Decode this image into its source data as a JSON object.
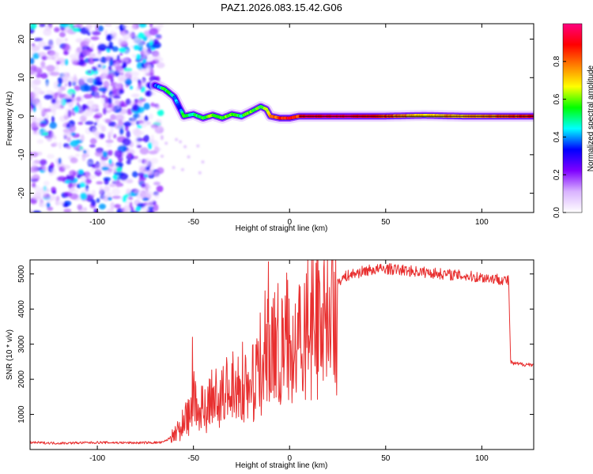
{
  "title": "PAZ1.2026.083.15.42.G06",
  "chart_data": [
    {
      "type": "heatmap",
      "title": "PAZ1.2026.083.15.42.G06",
      "xlabel": "Height of straight line (km)",
      "ylabel": "Frequency (Hz)",
      "xlim": [
        -135,
        127
      ],
      "ylim": [
        -25,
        24
      ],
      "xticks": [
        -100,
        -50,
        0,
        50,
        100
      ],
      "yticks": [
        20,
        10,
        0,
        -10,
        -20
      ],
      "xtick_labels": [
        "-100",
        "-50",
        "0",
        "50",
        "100"
      ],
      "ytick_labels": [
        "20",
        "10",
        "0",
        "-10",
        "-20"
      ],
      "ridge": {
        "x": [
          -70,
          -65,
          -60,
          -57,
          -55,
          -50,
          -45,
          -40,
          -35,
          -30,
          -25,
          -20,
          -15,
          -12,
          -10,
          -5,
          0,
          5,
          10,
          30,
          50,
          70,
          90,
          110,
          127
        ],
        "y": [
          8,
          7,
          5,
          2,
          0,
          0.5,
          -0.5,
          0.3,
          -0.5,
          0.5,
          0,
          1.2,
          2.5,
          1.8,
          0,
          -0.5,
          -0.5,
          0,
          0,
          0,
          0,
          0.2,
          0,
          0,
          0
        ],
        "amplitude": [
          0.3,
          0.55,
          0.45,
          0.3,
          0.55,
          0.5,
          0.55,
          0.6,
          0.55,
          0.6,
          0.5,
          0.6,
          0.55,
          0.6,
          0.75,
          0.85,
          0.9,
          0.85,
          0.95,
          0.98,
          0.85,
          0.7,
          0.75,
          0.8,
          0.9
        ]
      },
      "noise_region": {
        "x_from": -135,
        "x_to": -67,
        "amplitude": 0.15
      },
      "colorbar": {
        "label": "Normalized spectral amplitude",
        "range": [
          0,
          1
        ],
        "ticks": [
          0,
          0.2,
          0.4,
          0.6,
          0.8
        ],
        "tick_labels": [
          "0.0",
          "0.2",
          "0.4",
          "0.6",
          "0.8"
        ],
        "colors": [
          "#ffffff",
          "#d9b3ff",
          "#7f00ff",
          "#0000ff",
          "#00ffff",
          "#00ff00",
          "#ffff00",
          "#ff8000",
          "#ff0000",
          "#ff0080"
        ]
      }
    },
    {
      "type": "line",
      "xlabel": "Height of straight line (km)",
      "ylabel": "SNR (10 * v/v)",
      "xlim": [
        -135,
        127
      ],
      "ylim": [
        0,
        5400
      ],
      "xticks": [
        -100,
        -50,
        0,
        50,
        100
      ],
      "yticks": [
        1000,
        2000,
        3000,
        4000,
        5000
      ],
      "xtick_labels": [
        "-100",
        "-50",
        "0",
        "50",
        "100"
      ],
      "ytick_labels": [
        "1000",
        "2000",
        "3000",
        "4000",
        "5000"
      ],
      "color": "#e83030",
      "x": [
        -135,
        -120,
        -100,
        -80,
        -66,
        -60,
        -55,
        -52,
        -50,
        -48,
        -45,
        -40,
        -35,
        -30,
        -25,
        -20,
        -15,
        -12,
        -10,
        -5,
        0,
        5,
        10,
        15,
        20,
        25,
        30,
        40,
        50,
        60,
        70,
        80,
        90,
        100,
        110,
        114,
        115,
        116,
        120,
        127
      ],
      "values": [
        200,
        180,
        200,
        190,
        200,
        400,
        800,
        1200,
        2000,
        900,
        1300,
        1500,
        1700,
        1800,
        2000,
        2300,
        2700,
        3000,
        2900,
        3200,
        3300,
        3600,
        4000,
        4300,
        4600,
        4800,
        4950,
        5100,
        5150,
        5100,
        5050,
        5000,
        4950,
        4900,
        4850,
        4800,
        2500,
        2450,
        2430,
        2420
      ],
      "spikes": [
        {
          "x": -50.5,
          "value": 3200
        },
        {
          "x": -11,
          "value": 5350
        }
      ]
    }
  ]
}
